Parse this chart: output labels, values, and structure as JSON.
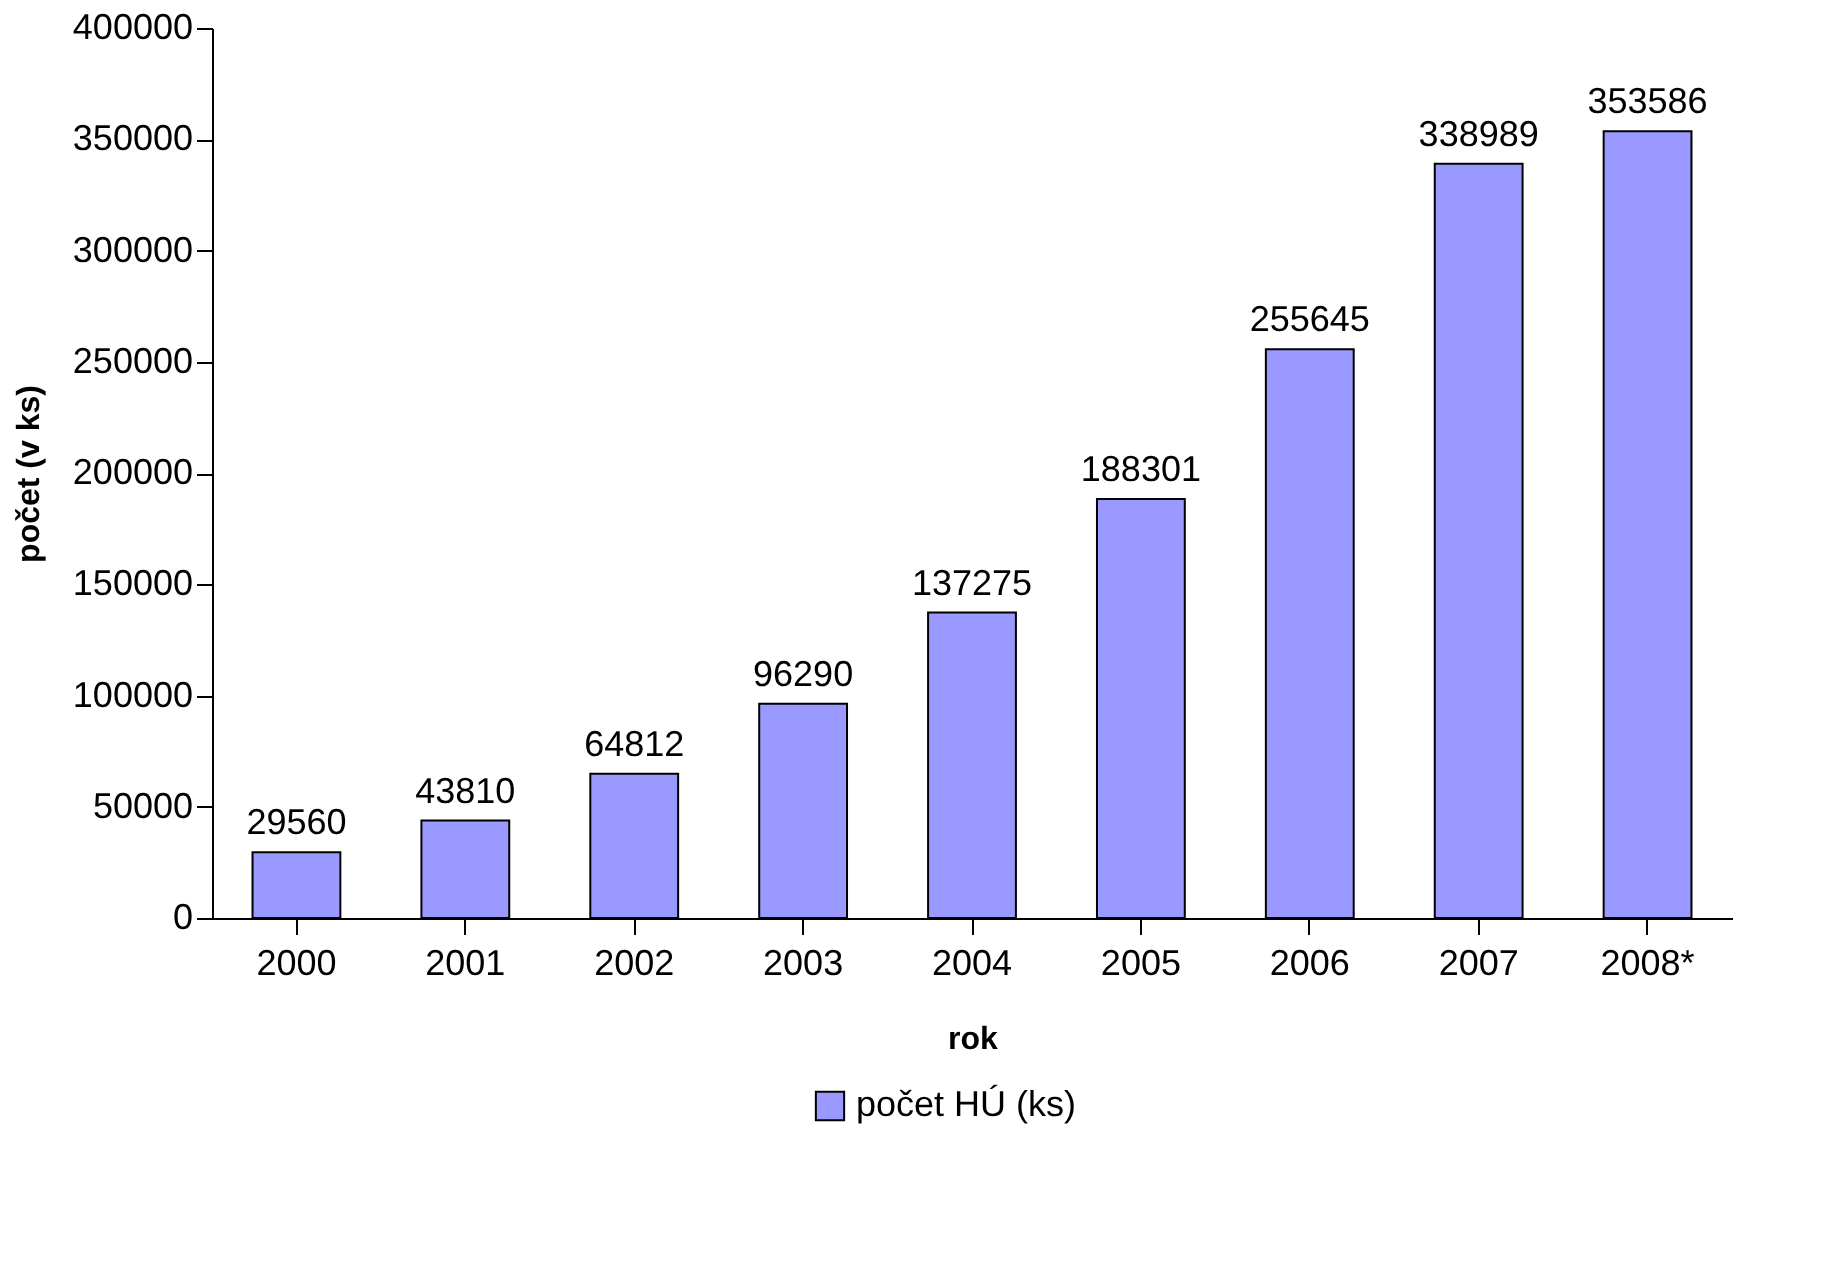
{
  "chart_data": {
    "type": "bar",
    "xlabel": "rok",
    "ylabel": "počet (v ks)",
    "categories": [
      "2000",
      "2001",
      "2002",
      "2003",
      "2004",
      "2005",
      "2006",
      "2007",
      "2008*"
    ],
    "series": [
      {
        "name": "počet HÚ (ks)",
        "color": "#9999ff",
        "values": [
          29560,
          43810,
          64812,
          96290,
          137275,
          188301,
          255645,
          338989,
          353586
        ]
      }
    ],
    "ylim": [
      0,
      400000
    ],
    "yticks": [
      0,
      50000,
      100000,
      150000,
      200000,
      250000,
      300000,
      350000,
      400000
    ],
    "data_labels": true,
    "legend": "bottom",
    "grid": false
  }
}
